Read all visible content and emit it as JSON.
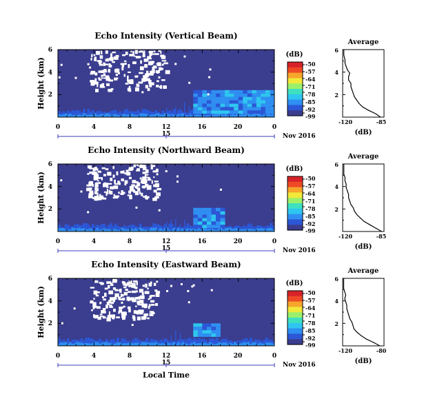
{
  "figure": {
    "xlabel": "Local Time",
    "date_label": "Nov 2016"
  },
  "colorbar": {
    "unit": "(dB)",
    "ticks": [
      "-50",
      "-57",
      "-64",
      "-71",
      "-78",
      "-85",
      "-92",
      "-99"
    ],
    "colors": [
      "#3b3d8f",
      "#2b57d6",
      "#2f8ff2",
      "#2ec6f0",
      "#3fe0c0",
      "#9af06a",
      "#f2e83a",
      "#f7a52b",
      "#ee4a26",
      "#d8222a"
    ]
  },
  "colors": {
    "background_field": "#3b3d8f",
    "echo_band": "#2b57d6",
    "echo_band_bright": "#2ec6f0",
    "no_data": "#ffffff",
    "date_axis": "#3b3dbf"
  },
  "chart_data": [
    {
      "type": "heatmap",
      "title": "Echo Intensity (Vertical Beam)",
      "ylabel": "Height (km)",
      "ylim": [
        0,
        6
      ],
      "yticks": [
        "2",
        "4",
        "6"
      ],
      "xlim": [
        0,
        24
      ],
      "xticks": [
        "0",
        "4",
        "8",
        "12",
        "16",
        "20",
        "0"
      ],
      "day_label": "15",
      "gap_region": {
        "x": [
          3.5,
          12
        ],
        "y": [
          2.5,
          6
        ]
      },
      "bright_block": {
        "x": [
          15,
          24
        ],
        "y": [
          0.3,
          2.2
        ]
      }
    },
    {
      "type": "heatmap",
      "title": "Echo Intensity (Northward Beam)",
      "ylabel": "Height (km)",
      "ylim": [
        0,
        6
      ],
      "yticks": [
        "2",
        "4",
        "6"
      ],
      "xlim": [
        0,
        24
      ],
      "xticks": [
        "0",
        "4",
        "8",
        "12",
        "16",
        "20",
        "0"
      ],
      "day_label": "15",
      "gap_region": {
        "x": [
          3,
          11
        ],
        "y": [
          3,
          6
        ]
      },
      "bright_block": {
        "x": [
          15,
          18.5
        ],
        "y": [
          0.3,
          2
        ]
      }
    },
    {
      "type": "heatmap",
      "title": "Echo Intensity (Eastward Beam)",
      "ylabel": "Height (km)",
      "ylim": [
        0,
        6
      ],
      "yticks": [
        "2",
        "4",
        "6"
      ],
      "xlim": [
        0,
        24
      ],
      "xticks": [
        "0",
        "4",
        "8",
        "12",
        "16",
        "20",
        "0"
      ],
      "day_label": "15",
      "gap_region": {
        "x": [
          3.5,
          11
        ],
        "y": [
          2.5,
          6
        ]
      },
      "bright_block": {
        "x": [
          15,
          18
        ],
        "y": [
          0.8,
          1.8
        ]
      }
    }
  ],
  "profiles": [
    {
      "type": "line",
      "title": "Average",
      "xlabel": "(dB)",
      "xlim": [
        -120,
        -85
      ],
      "xticks": [
        "-120",
        "-85"
      ],
      "ylim": [
        0,
        6
      ],
      "yticks": [
        "2",
        "4",
        "6"
      ],
      "x": [
        -88,
        -92,
        -98,
        -103,
        -106,
        -108,
        -110,
        -111,
        -112,
        -113,
        -113,
        -115,
        -115,
        -114,
        -116,
        -117,
        -118,
        -118,
        -119,
        -119
      ],
      "y": [
        0.0,
        0.3,
        0.6,
        0.9,
        1.2,
        1.5,
        1.8,
        2.1,
        2.4,
        2.7,
        3.0,
        3.3,
        3.6,
        3.9,
        4.2,
        4.5,
        4.8,
        5.1,
        5.5,
        6.0
      ]
    },
    {
      "type": "line",
      "title": "Average",
      "xlabel": "(dB)",
      "xlim": [
        -120,
        -85
      ],
      "xticks": [
        "-120",
        "-85"
      ],
      "ylim": [
        0,
        6
      ],
      "yticks": [
        "2",
        "4",
        "6"
      ],
      "x": [
        -87,
        -92,
        -97,
        -102,
        -105,
        -108,
        -110,
        -111,
        -113,
        -114,
        -115,
        -115,
        -116,
        -117,
        -117,
        -118,
        -118,
        -119,
        -119,
        -119
      ],
      "y": [
        0.0,
        0.3,
        0.6,
        0.9,
        1.2,
        1.5,
        1.8,
        2.1,
        2.4,
        2.7,
        3.0,
        3.3,
        3.6,
        3.9,
        4.2,
        4.5,
        4.8,
        5.1,
        5.5,
        6.0
      ]
    },
    {
      "type": "line",
      "title": "Average",
      "xlabel": "(dB)",
      "xlim": [
        -120,
        -80
      ],
      "xticks": [
        "-120",
        "-80"
      ],
      "ylim": [
        0,
        6
      ],
      "yticks": [
        "2",
        "4",
        "6"
      ],
      "x": [
        -84,
        -90,
        -97,
        -102,
        -106,
        -109,
        -110,
        -111,
        -113,
        -114,
        -115,
        -116,
        -116,
        -117,
        -118,
        -117,
        -118,
        -119,
        -119,
        -119
      ],
      "y": [
        0.0,
        0.3,
        0.6,
        0.9,
        1.2,
        1.5,
        1.8,
        2.1,
        2.4,
        2.7,
        3.0,
        3.3,
        3.6,
        3.9,
        4.2,
        4.5,
        4.8,
        5.1,
        5.5,
        6.0
      ]
    }
  ]
}
